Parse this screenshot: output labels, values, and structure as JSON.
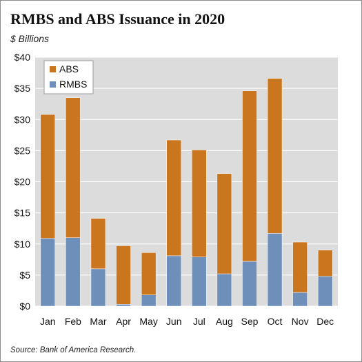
{
  "header": {
    "title": "RMBS and ABS Issuance in 2020",
    "subtitle": "$ Billions"
  },
  "footer": {
    "source": "Source: Bank of America Research."
  },
  "chart_data": {
    "type": "bar",
    "stacked": true,
    "categories": [
      "Jan",
      "Feb",
      "Mar",
      "Apr",
      "May",
      "Jun",
      "Jul",
      "Aug",
      "Sep",
      "Oct",
      "Nov",
      "Dec"
    ],
    "series": [
      {
        "name": "RMBS",
        "color": "#6e8fba",
        "values": [
          10.9,
          11.0,
          6.0,
          0.3,
          1.8,
          8.1,
          7.9,
          5.2,
          7.2,
          11.7,
          2.2,
          4.8
        ]
      },
      {
        "name": "ABS",
        "color": "#ca761f",
        "values": [
          19.9,
          22.5,
          8.1,
          9.4,
          6.8,
          18.6,
          17.2,
          16.1,
          27.4,
          24.9,
          8.1,
          4.2
        ]
      }
    ],
    "ylim": [
      0,
      40
    ],
    "yticks": [
      "$0",
      "$5",
      "$10",
      "$15",
      "$20",
      "$25",
      "$30",
      "$35",
      "$40"
    ],
    "grid": true,
    "plot_background": "#dcdcdc",
    "legend": {
      "position": "top-left",
      "entries": [
        "ABS",
        "RMBS"
      ]
    }
  }
}
